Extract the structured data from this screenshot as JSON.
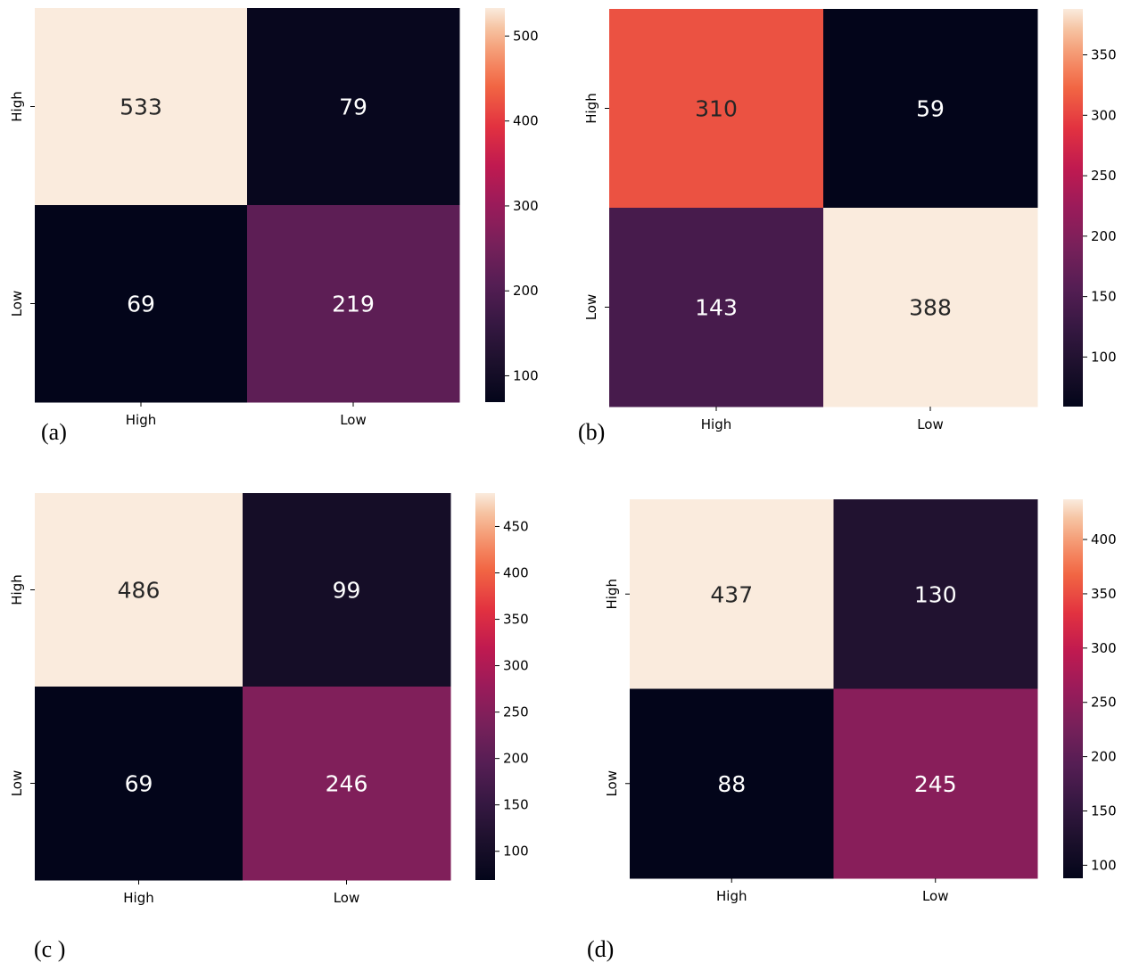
{
  "chart_data": [
    {
      "type": "heatmap",
      "panel_label": "(a)",
      "rows": [
        "High",
        "Low"
      ],
      "cols": [
        "High",
        "Low"
      ],
      "values": [
        [
          533,
          79
        ],
        [
          69,
          219
        ]
      ],
      "colorbar": {
        "min": 69,
        "max": 533,
        "ticks": [
          100,
          200,
          300,
          400,
          500
        ]
      }
    },
    {
      "type": "heatmap",
      "panel_label": "(b)",
      "rows": [
        "High",
        "Low"
      ],
      "cols": [
        "High",
        "Low"
      ],
      "values": [
        [
          310,
          59
        ],
        [
          143,
          388
        ]
      ],
      "colorbar": {
        "min": 59,
        "max": 388,
        "ticks": [
          100,
          150,
          200,
          250,
          300,
          350
        ]
      }
    },
    {
      "type": "heatmap",
      "panel_label": "(c )",
      "rows": [
        "High",
        "Low"
      ],
      "cols": [
        "High",
        "Low"
      ],
      "values": [
        [
          486,
          99
        ],
        [
          69,
          246
        ]
      ],
      "colorbar": {
        "min": 69,
        "max": 486,
        "ticks": [
          100,
          150,
          200,
          250,
          300,
          350,
          400,
          450
        ]
      }
    },
    {
      "type": "heatmap",
      "panel_label": "(d)",
      "rows": [
        "High",
        "Low"
      ],
      "cols": [
        "High",
        "Low"
      ],
      "values": [
        [
          437,
          130
        ],
        [
          88,
          245
        ]
      ],
      "colorbar": {
        "min": 88,
        "max": 437,
        "ticks": [
          100,
          150,
          200,
          250,
          300,
          350,
          400
        ]
      }
    }
  ],
  "colormap": "rocket"
}
